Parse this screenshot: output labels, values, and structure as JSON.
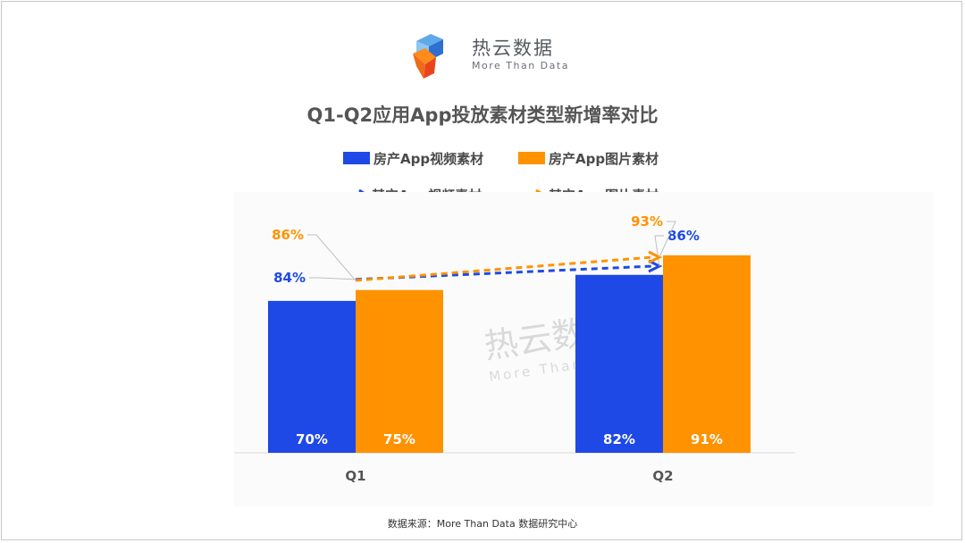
{
  "brand": {
    "name_cn": "热云数据",
    "name_en": "More Than Data"
  },
  "title": "Q1-Q2应用App投放素材类型新增率对比",
  "legend": {
    "blue_bar": "房产App视频素材",
    "orange_bar": "房产App图片素材",
    "blue_line": "其它App视频素材",
    "orange_line": "其它App图片素材"
  },
  "source": "数据来源：More Than Data 数据研究中心",
  "colors": {
    "blue": "#1e49e6",
    "orange": "#ff9200",
    "text": "#555555"
  },
  "chart_data": {
    "type": "bar",
    "categories": [
      "Q1",
      "Q2"
    ],
    "ylim": [
      0,
      100
    ],
    "series": [
      {
        "name": "房产App视频素材",
        "type": "bar",
        "color": "#1e49e6",
        "values": [
          70,
          82
        ],
        "labels": [
          "70%",
          "82%"
        ]
      },
      {
        "name": "房产App图片素材",
        "type": "bar",
        "color": "#ff9200",
        "values": [
          75,
          91
        ],
        "labels": [
          "75%",
          "91%"
        ]
      },
      {
        "name": "其它App视频素材",
        "type": "line",
        "style": "dashed-arrow",
        "color": "#1e49e6",
        "values": [
          84,
          86
        ],
        "labels": [
          "84%",
          "86%"
        ]
      },
      {
        "name": "其它App图片素材",
        "type": "line",
        "style": "dashed-arrow",
        "color": "#ff9200",
        "values": [
          86,
          93
        ],
        "labels": [
          "86%",
          "93%"
        ]
      }
    ],
    "grid": false,
    "legend_position": "top"
  }
}
